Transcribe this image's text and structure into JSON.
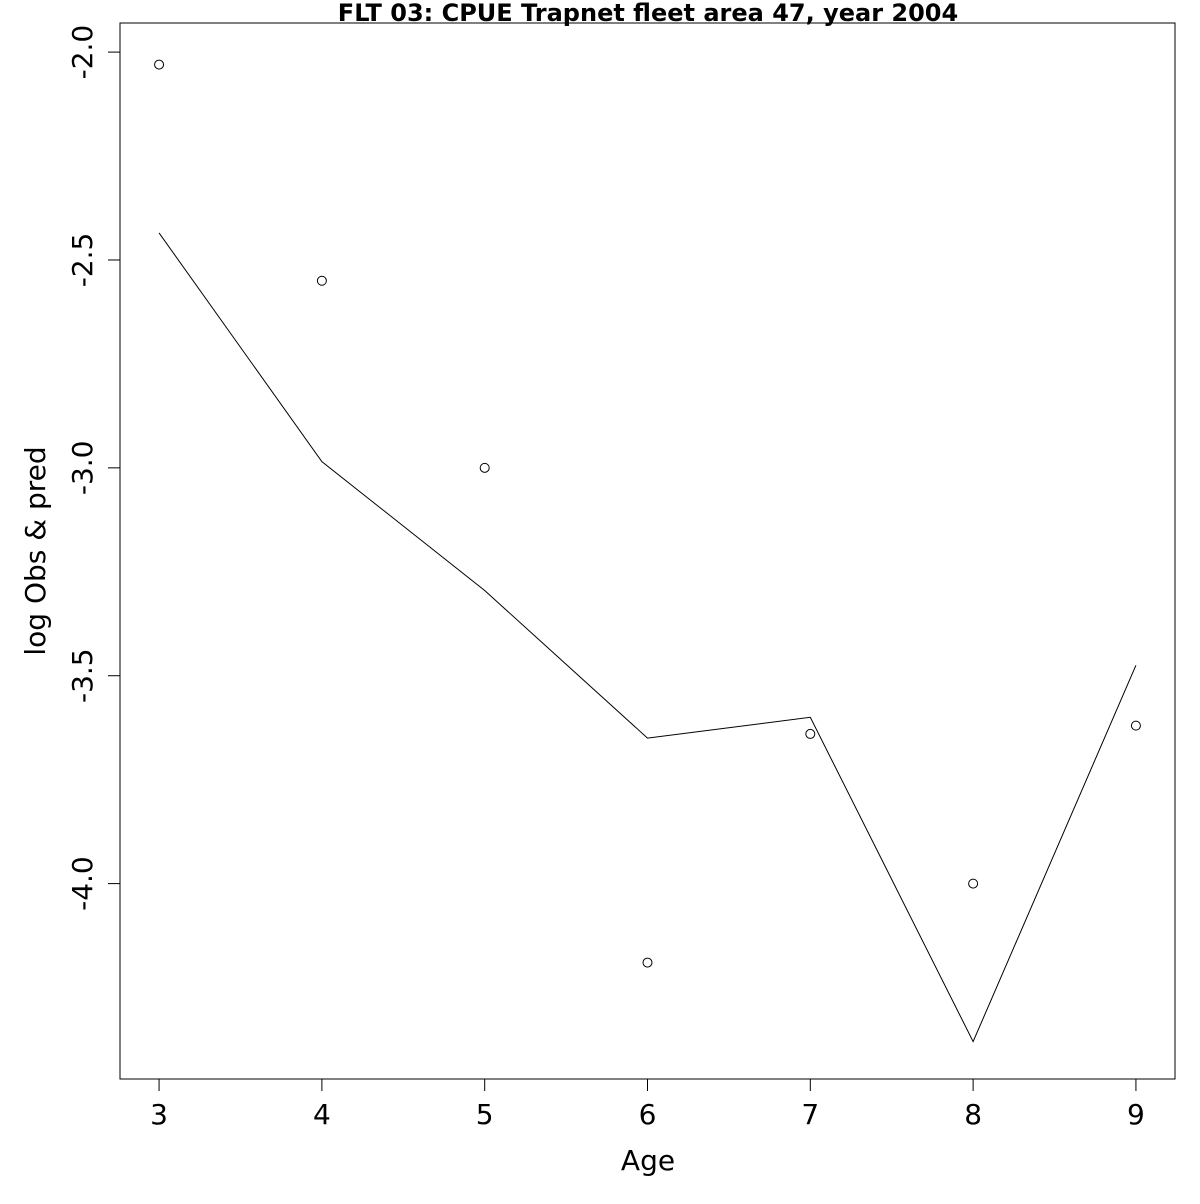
{
  "chart_data": {
    "type": "line",
    "title": "FLT 03: CPUE Trapnet fleet area 47, year 2004",
    "xlabel": "Age",
    "ylabel": "log Obs & pred",
    "xlim": [
      2.76,
      9.24
    ],
    "ylim": [
      -4.47,
      -1.93
    ],
    "x_ticks": [
      3,
      4,
      5,
      6,
      7,
      8,
      9
    ],
    "x_tick_labels": [
      "3",
      "4",
      "5",
      "6",
      "7",
      "8",
      "9"
    ],
    "y_ticks": [
      -2.0,
      -2.5,
      -3.0,
      -3.5,
      -4.0
    ],
    "y_tick_labels": [
      "-2.0",
      "-2.5",
      "-3.0",
      "-3.5",
      "-4.0"
    ],
    "grid": false,
    "legend": "none",
    "series": [
      {
        "kind": "points",
        "marker": "open-circle",
        "x": [
          3,
          4,
          5,
          6,
          7,
          8,
          9
        ],
        "y": [
          -2.03,
          -2.55,
          -3.0,
          -4.19,
          -3.64,
          -4.0,
          -3.62
        ]
      },
      {
        "kind": "line",
        "x": [
          3,
          4,
          5,
          6,
          7,
          8,
          9
        ],
        "y": [
          -2.435,
          -2.985,
          -3.295,
          -3.65,
          -3.6,
          -4.38,
          -3.475
        ]
      }
    ]
  }
}
